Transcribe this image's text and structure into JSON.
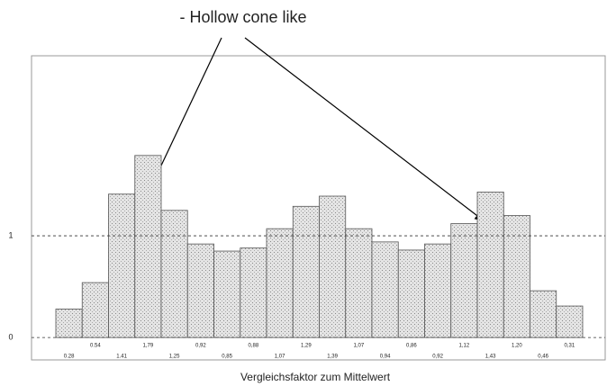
{
  "chart_data": {
    "type": "bar",
    "annotation": "- Hollow cone like",
    "x_label": "Vergleichsfaktor zum Mittelwert",
    "values": [
      0.28,
      0.54,
      1.41,
      1.79,
      1.25,
      0.92,
      0.85,
      0.88,
      1.07,
      1.29,
      1.39,
      1.07,
      0.94,
      0.86,
      0.92,
      1.12,
      1.43,
      1.2,
      0.46,
      0.31
    ],
    "value_labels": [
      "0.28",
      "0.54",
      "1.41",
      "1,79",
      "1,25",
      "0,92",
      "0,85",
      "0,88",
      "1,07",
      "1,29",
      "1,39",
      "1,07",
      "0,94",
      "0,86",
      "0,92",
      "1,12",
      "1,43",
      "1,20",
      "0,46",
      "0,31"
    ],
    "color": "#d4d4d4",
    "ylim": [
      -0.22,
      2.77
    ],
    "yticks": [
      0,
      1
    ],
    "grid": true
  }
}
